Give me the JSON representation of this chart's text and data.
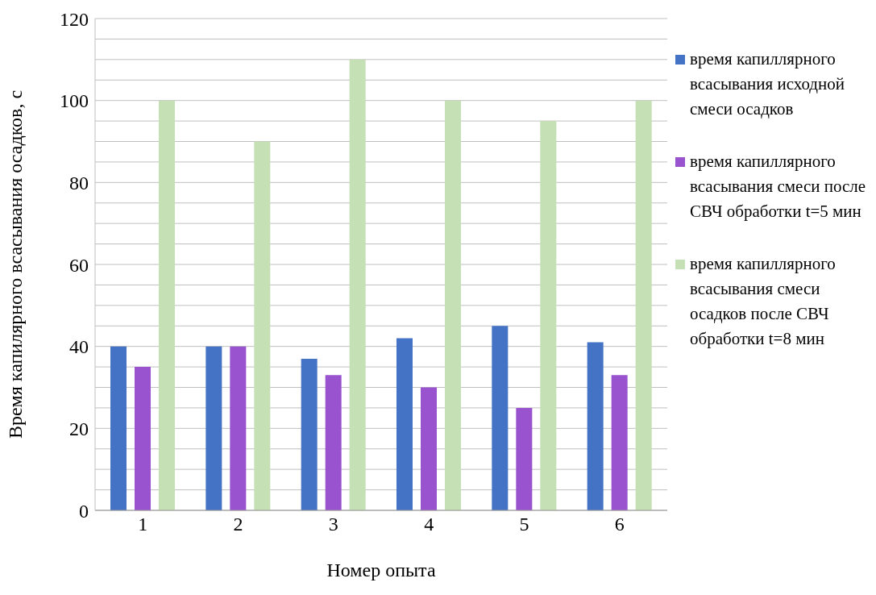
{
  "chart_data": {
    "type": "bar",
    "xlabel": "Номер опыта",
    "ylabel": "Время капилярного всасывания осадков, с",
    "categories": [
      "1",
      "2",
      "3",
      "4",
      "5",
      "6"
    ],
    "series": [
      {
        "name": "время капиллярного всасывания исходной смеси осадков",
        "color": "#4472c4",
        "values": [
          40,
          40,
          37,
          42,
          45,
          41
        ]
      },
      {
        "name": "время капиллярного всасывания смеси после СВЧ обработки t=5 мин",
        "color": "#9953cf",
        "values": [
          35,
          40,
          33,
          30,
          25,
          33
        ]
      },
      {
        "name": "время капиллярного всасывания смеси осадков после СВЧ обработки t=8 мин",
        "color": "#c5e0b4",
        "values": [
          100,
          90,
          110,
          100,
          95,
          100
        ]
      }
    ],
    "ylim": [
      0,
      120
    ],
    "yticks": [
      0,
      {
        "value": 5,
        "label": null
      },
      {
        "value": 10,
        "label": null
      },
      {
        "value": 15,
        "label": null
      },
      20,
      {
        "value": 25,
        "label": null
      },
      {
        "value": 30,
        "label": null
      },
      {
        "value": 35,
        "label": null
      },
      40,
      {
        "value": 45,
        "label": null
      },
      {
        "value": 50,
        "label": null
      },
      {
        "value": 55,
        "label": null
      },
      60,
      {
        "value": 65,
        "label": null
      },
      {
        "value": 70,
        "label": null
      },
      {
        "value": 75,
        "label": null
      },
      80,
      {
        "value": 85,
        "label": null
      },
      {
        "value": 90,
        "label": null
      },
      {
        "value": 95,
        "label": null
      },
      100,
      {
        "value": 105,
        "label": null
      },
      {
        "value": 110,
        "label": null
      },
      {
        "value": 115,
        "label": null
      },
      120
    ],
    "grid": "y",
    "legend": "right"
  }
}
